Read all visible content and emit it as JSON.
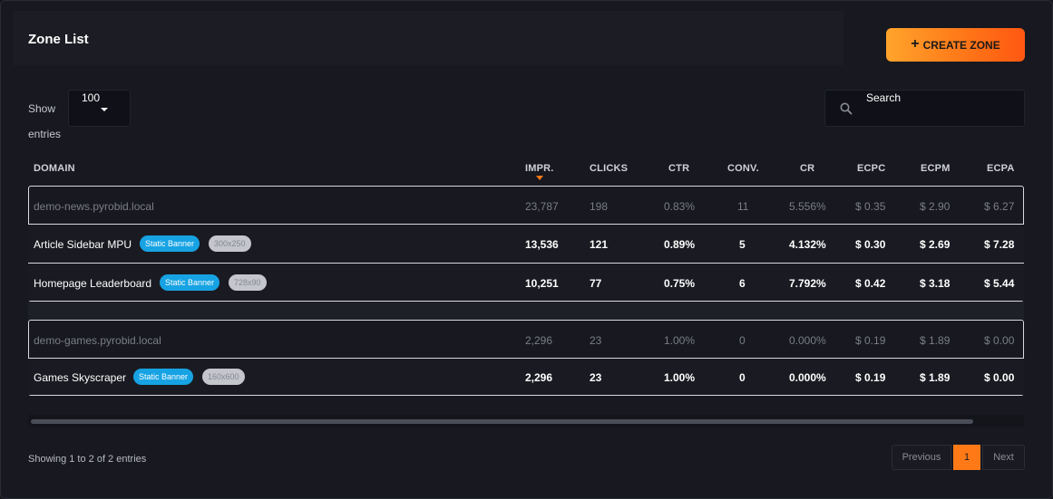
{
  "header": {
    "title": "Zone List",
    "create_label": "CREATE ZONE"
  },
  "controls": {
    "show_label": "Show",
    "entries_label": "entries",
    "page_length": "100",
    "search_label": "Search"
  },
  "table": {
    "columns": [
      "DOMAIN",
      "IMPR.",
      "CLICKS",
      "CTR",
      "CONV.",
      "CR",
      "ECPC",
      "ECPM",
      "ECPA"
    ],
    "domains": [
      {
        "domain": "demo-news.pyrobid.local",
        "totals": [
          "23,787",
          "198",
          "0.83%",
          "11",
          "5.556%",
          "$ 0.35",
          "$ 2.90",
          "$ 6.27"
        ],
        "zones": [
          {
            "name": "Article Sidebar MPU",
            "type": "Static Banner",
            "size": "300x250",
            "values": [
              "13,536",
              "121",
              "0.89%",
              "5",
              "4.132%",
              "$ 0.30",
              "$ 2.69",
              "$ 7.28"
            ]
          },
          {
            "name": "Homepage Leaderboard",
            "type": "Static Banner",
            "size": "728x90",
            "values": [
              "10,251",
              "77",
              "0.75%",
              "6",
              "7.792%",
              "$ 0.42",
              "$ 3.18",
              "$ 5.44"
            ]
          }
        ]
      },
      {
        "domain": "demo-games.pyrobid.local",
        "totals": [
          "2,296",
          "23",
          "1.00%",
          "0",
          "0.000%",
          "$ 0.19",
          "$ 1.89",
          "$ 0.00"
        ],
        "zones": [
          {
            "name": "Games Skyscraper",
            "type": "Static Banner",
            "size": "160x600",
            "values": [
              "2,296",
              "23",
              "1.00%",
              "0",
              "0.000%",
              "$ 0.19",
              "$ 1.89",
              "$ 0.00"
            ]
          }
        ]
      }
    ]
  },
  "footer": {
    "info": "Showing 1 to 2 of 2 entries",
    "previous_label": "Previous",
    "current_page": "1",
    "next_label": "Next"
  },
  "colors": {
    "accent": "#ff7a17",
    "badge_blue": "#17a3e3",
    "background": "#171820"
  }
}
